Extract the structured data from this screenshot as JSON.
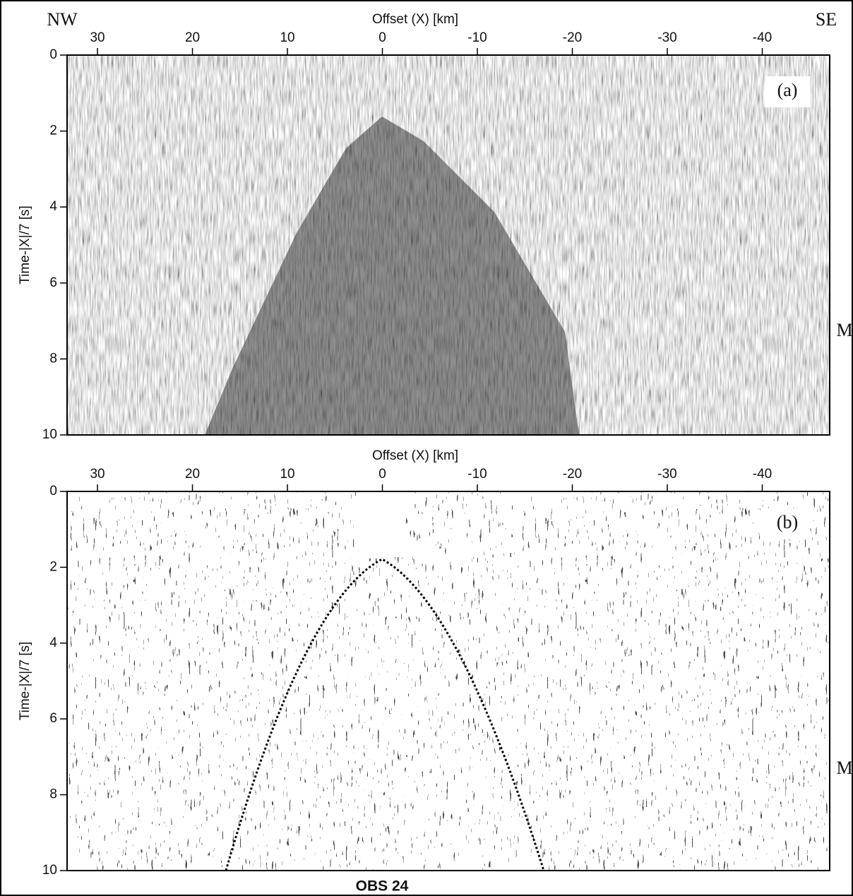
{
  "chart_data": [
    {
      "type": "seismic-section",
      "xlabel": "Offset (X) [km]",
      "ylabel": "Time-|X|/7 [s]",
      "xlim": [
        33.2,
        -47.1
      ],
      "xticks": [
        30,
        20,
        10,
        0,
        -10,
        -20,
        -30,
        -40
      ],
      "ylim": [
        0,
        10
      ],
      "yticks": [
        0,
        2,
        4,
        6,
        8,
        10
      ],
      "annotations": [
        "NW",
        "SE",
        "(a)",
        "M"
      ]
    },
    {
      "type": "seismic-section",
      "xlabel": "Offset (X) [km]",
      "ylabel": "Time-|X|/7 [s]",
      "xlim": [
        33.2,
        -47.1
      ],
      "xticks": [
        30,
        20,
        10,
        0,
        -10,
        -20,
        -30,
        -40
      ],
      "ylim": [
        0,
        10
      ],
      "yticks": [
        0,
        2,
        4,
        6,
        8,
        10
      ],
      "annotations": [
        "(b)",
        "M"
      ],
      "caption": "OBS 24"
    }
  ]
}
